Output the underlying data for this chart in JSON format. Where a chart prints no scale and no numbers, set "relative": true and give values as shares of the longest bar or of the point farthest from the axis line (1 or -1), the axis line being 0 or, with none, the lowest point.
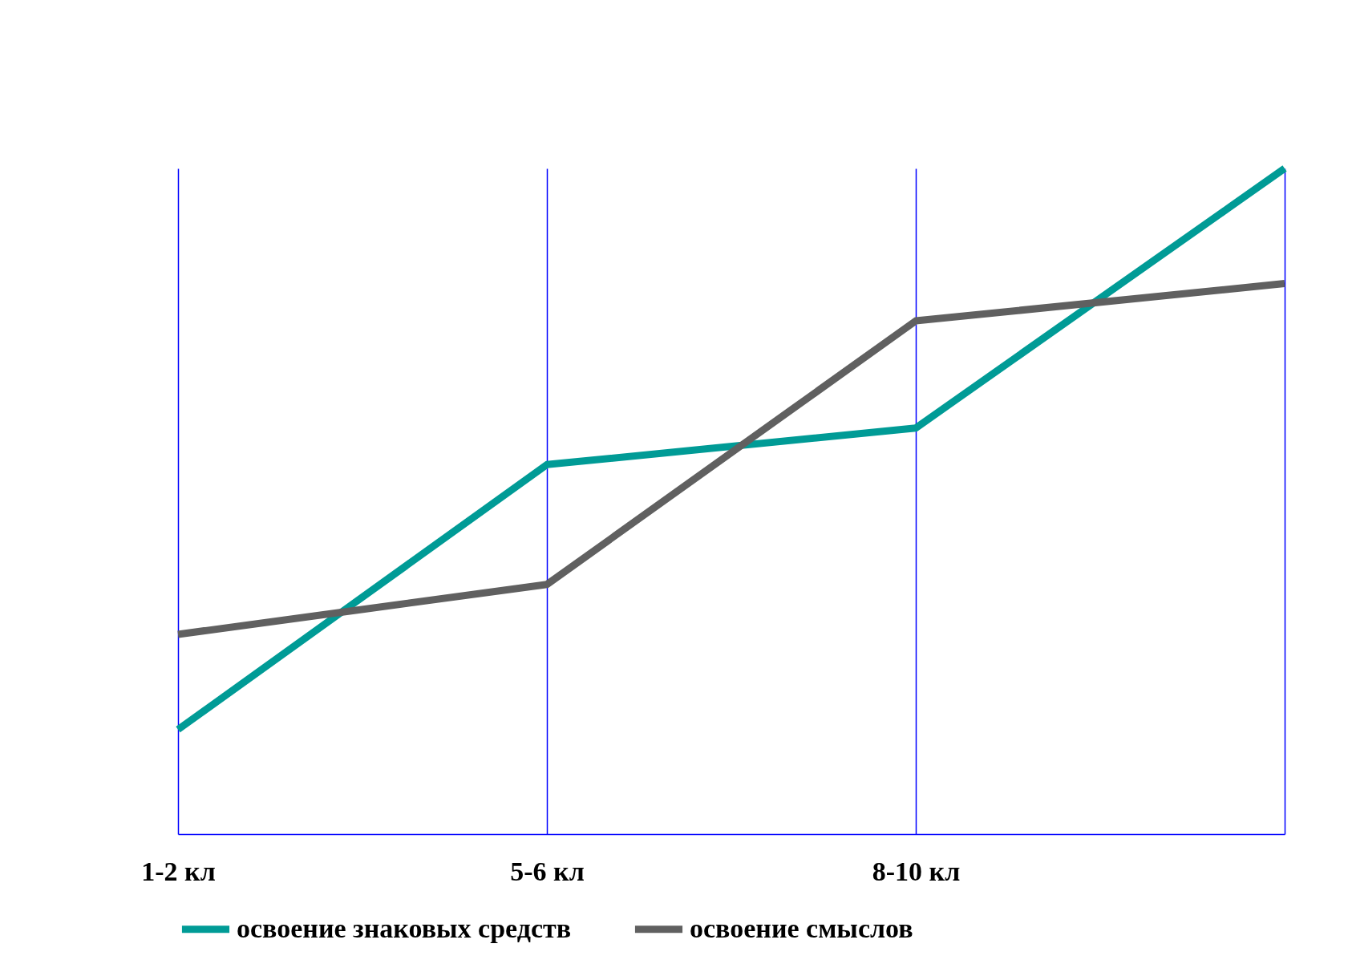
{
  "chart_data": {
    "type": "line",
    "relative": true,
    "categories": [
      "1-2 кл",
      "5-6 кл",
      "8-10 кл",
      null
    ],
    "series": [
      {
        "name": "освоение знаковых средств",
        "color": "#009b96",
        "values": [
          0.157,
          0.555,
          0.61,
          1
        ]
      },
      {
        "name": "освоение смыслов",
        "color": "#606060",
        "values": [
          0.3,
          0.375,
          0.771,
          0.827
        ]
      }
    ],
    "grid": "x",
    "legend": "bottom",
    "marker": "none",
    "line_style": "solid"
  }
}
